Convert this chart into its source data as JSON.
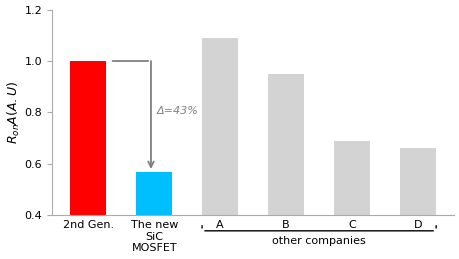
{
  "categories": [
    "2nd Gen.",
    "The new\nSiC\nMOSFET",
    "A",
    "B",
    "C",
    "D"
  ],
  "values": [
    1.0,
    0.57,
    1.09,
    0.95,
    0.69,
    0.66
  ],
  "bar_colors": [
    "#ff0000",
    "#00bfff",
    "#d3d3d3",
    "#d3d3d3",
    "#d3d3d3",
    "#d3d3d3"
  ],
  "ylim": [
    0.4,
    1.2
  ],
  "yticks": [
    0.4,
    0.6,
    0.8,
    1.0,
    1.2
  ],
  "ylabel": "$R_{on}A(A.U)$",
  "delta_label": "Δ=43%",
  "other_companies_label": "other companies",
  "background_color": "#ffffff",
  "bar_width": 0.55
}
